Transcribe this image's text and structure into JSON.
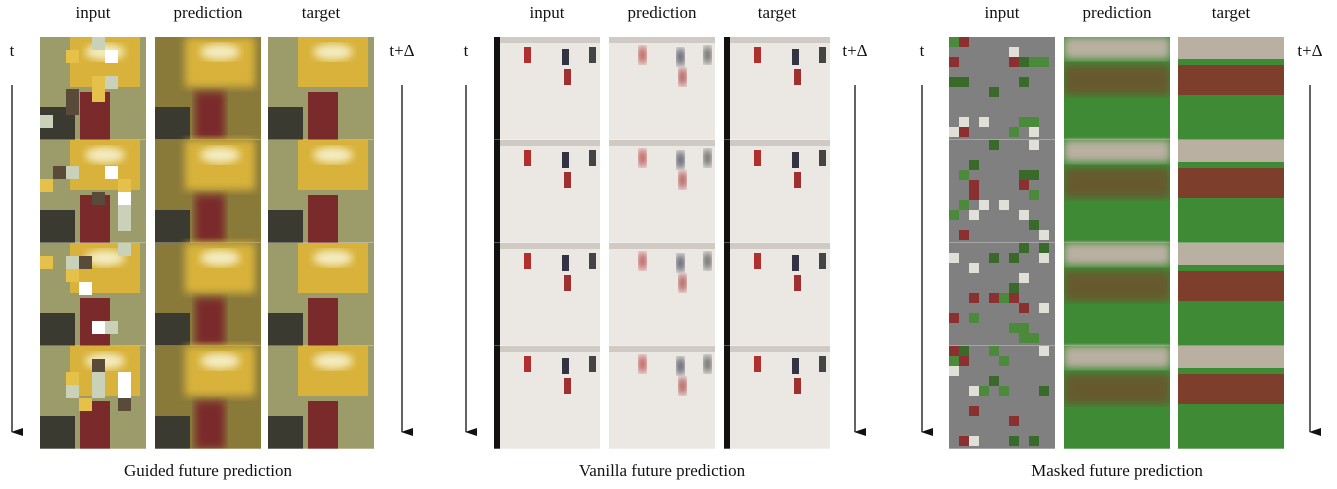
{
  "panels": [
    {
      "columns": [
        "input",
        "prediction",
        "target"
      ],
      "start_label": "t",
      "end_label": "t+Δ",
      "caption": "Guided future prediction"
    },
    {
      "columns": [
        "input",
        "prediction",
        "target"
      ],
      "start_label": "t",
      "end_label": "t+Δ",
      "caption": "Vanilla future prediction"
    },
    {
      "columns": [
        "input",
        "prediction",
        "target"
      ],
      "start_label": "t",
      "end_label": "t+Δ",
      "caption": "Masked future prediction"
    }
  ]
}
